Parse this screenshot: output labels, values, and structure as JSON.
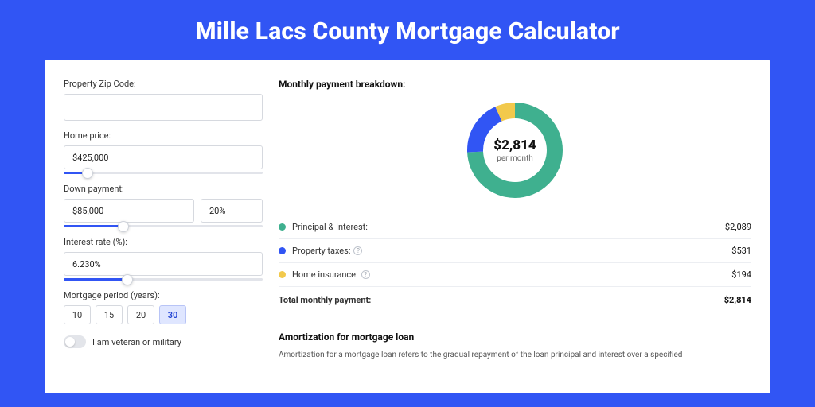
{
  "page": {
    "title": "Mille Lacs County Mortgage Calculator",
    "background_color": "#3155f4",
    "card_background": "#ffffff"
  },
  "form": {
    "zip": {
      "label": "Property Zip Code:",
      "value": ""
    },
    "home_price": {
      "label": "Home price:",
      "value": "$425,000",
      "slider_pct": 12
    },
    "down_payment": {
      "label": "Down payment:",
      "amount": "$85,000",
      "percent": "20%",
      "slider_pct": 30
    },
    "interest": {
      "label": "Interest rate (%):",
      "value": "6.230%",
      "slider_pct": 32
    },
    "period": {
      "label": "Mortgage period (years):",
      "options": [
        "10",
        "15",
        "20",
        "30"
      ],
      "selected": "30"
    },
    "veteran": {
      "label": "I am veteran or military",
      "checked": false
    },
    "slider_colors": {
      "track": "#e2e4ea",
      "fill": "#3155f4",
      "thumb_border": "#cfd3db"
    }
  },
  "breakdown": {
    "title": "Monthly payment breakdown:",
    "donut": {
      "center_amount": "$2,814",
      "center_sub": "per month",
      "radius": 50,
      "stroke": 20,
      "slices": [
        {
          "key": "principal_interest",
          "fraction": 0.742,
          "color": "#3fb08f"
        },
        {
          "key": "property_taxes",
          "fraction": 0.189,
          "color": "#3155f4"
        },
        {
          "key": "home_insurance",
          "fraction": 0.069,
          "color": "#f2c94c"
        }
      ]
    },
    "items": [
      {
        "label": "Principal & Interest:",
        "value": "$2,089",
        "color": "#3fb08f",
        "info": false
      },
      {
        "label": "Property taxes:",
        "value": "$531",
        "color": "#3155f4",
        "info": true
      },
      {
        "label": "Home insurance:",
        "value": "$194",
        "color": "#f2c94c",
        "info": true
      }
    ],
    "total": {
      "label": "Total monthly payment:",
      "value": "$2,814"
    }
  },
  "amortization": {
    "title": "Amortization for mortgage loan",
    "text": "Amortization for a mortgage loan refers to the gradual repayment of the loan principal and interest over a specified"
  }
}
